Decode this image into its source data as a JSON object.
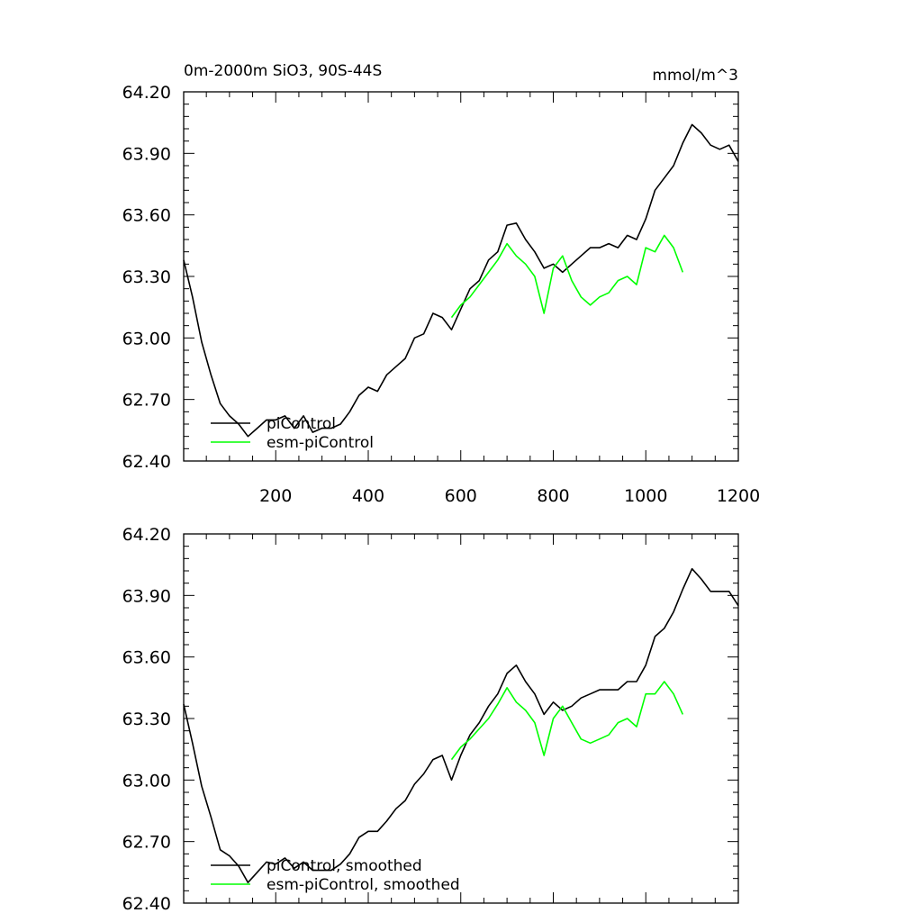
{
  "chart_data": {
    "type": "line",
    "units": "mmol/m^3",
    "colors": {
      "piControl": "#000000",
      "esm-piControl": "#00ff00",
      "axis": "#000000"
    },
    "xlim": [
      1,
      1200
    ],
    "ylim": [
      62.4,
      64.2
    ],
    "x_tick_labels": [
      "200",
      "400",
      "600",
      "800",
      "1000",
      "1200"
    ],
    "y_tick_labels": [
      "62.40",
      "62.70",
      "63.00",
      "63.30",
      "63.60",
      "63.90",
      "64.20"
    ],
    "panels": [
      {
        "title_left": "0m-2000m SiO3, 90S-44S",
        "title_right": "mmol/m^3",
        "smoothed": false,
        "legend": [
          "piControl",
          "esm-piControl"
        ],
        "series": [
          {
            "name": "piControl",
            "x": [
              1,
              20,
              40,
              60,
              80,
              100,
              120,
              140,
              160,
              180,
              200,
              220,
              240,
              260,
              280,
              300,
              320,
              340,
              360,
              380,
              400,
              420,
              440,
              460,
              480,
              500,
              520,
              540,
              560,
              580,
              600,
              620,
              640,
              660,
              680,
              700,
              720,
              740,
              760,
              780,
              800,
              820,
              840,
              860,
              880,
              900,
              920,
              940,
              960,
              980,
              1000,
              1020,
              1040,
              1060,
              1080,
              1100,
              1120,
              1140,
              1160,
              1180,
              1200
            ],
            "values": [
              63.38,
              63.2,
              62.98,
              62.82,
              62.68,
              62.62,
              62.58,
              62.52,
              62.56,
              62.6,
              62.6,
              62.62,
              62.56,
              62.62,
              62.54,
              62.56,
              62.56,
              62.58,
              62.64,
              62.72,
              62.76,
              62.74,
              62.82,
              62.86,
              62.9,
              63.0,
              63.02,
              63.12,
              63.1,
              63.04,
              63.14,
              63.24,
              63.28,
              63.38,
              63.42,
              63.55,
              63.56,
              63.48,
              63.42,
              63.34,
              63.36,
              63.32,
              63.36,
              63.4,
              63.44,
              63.44,
              63.46,
              63.44,
              63.5,
              63.48,
              63.58,
              63.72,
              63.78,
              63.84,
              63.95,
              64.04,
              64.0,
              63.94,
              63.92,
              63.94,
              63.86
            ]
          },
          {
            "name": "esm-piControl",
            "x": [
              580,
              600,
              620,
              640,
              660,
              680,
              700,
              720,
              740,
              760,
              780,
              800,
              820,
              840,
              860,
              880,
              900,
              920,
              940,
              960,
              980,
              1000,
              1020,
              1040,
              1060,
              1080
            ],
            "values": [
              63.1,
              63.16,
              63.2,
              63.26,
              63.32,
              63.38,
              63.46,
              63.4,
              63.36,
              63.3,
              63.12,
              63.34,
              63.4,
              63.28,
              63.2,
              63.16,
              63.2,
              63.22,
              63.28,
              63.3,
              63.26,
              63.44,
              63.42,
              63.5,
              63.44,
              63.32
            ]
          }
        ]
      },
      {
        "title_left": "",
        "title_right": "",
        "smoothed": true,
        "legend": [
          "piControl, smoothed",
          "esm-piControl, smoothed"
        ],
        "series": [
          {
            "name": "piControl, smoothed",
            "x": [
              1,
              20,
              40,
              60,
              80,
              100,
              120,
              140,
              160,
              180,
              200,
              220,
              240,
              260,
              280,
              300,
              320,
              340,
              360,
              380,
              400,
              420,
              440,
              460,
              480,
              500,
              520,
              540,
              560,
              580,
              600,
              620,
              640,
              660,
              680,
              700,
              720,
              740,
              760,
              780,
              800,
              820,
              840,
              860,
              880,
              900,
              920,
              940,
              960,
              980,
              1000,
              1020,
              1040,
              1060,
              1080,
              1100,
              1120,
              1140,
              1160,
              1180,
              1200
            ],
            "values": [
              63.37,
              63.18,
              62.97,
              62.82,
              62.66,
              62.63,
              62.58,
              62.5,
              62.55,
              62.6,
              62.59,
              62.62,
              62.57,
              62.6,
              62.56,
              62.56,
              62.56,
              62.59,
              62.64,
              62.72,
              62.75,
              62.75,
              62.8,
              62.86,
              62.9,
              62.98,
              63.03,
              63.1,
              63.12,
              63.0,
              63.12,
              63.22,
              63.28,
              63.36,
              63.42,
              63.52,
              63.56,
              63.48,
              63.42,
              63.32,
              63.38,
              63.34,
              63.36,
              63.4,
              63.42,
              63.44,
              63.44,
              63.44,
              63.48,
              63.48,
              63.56,
              63.7,
              63.74,
              63.82,
              63.93,
              64.03,
              63.98,
              63.92,
              63.92,
              63.92,
              63.85
            ]
          },
          {
            "name": "esm-piControl, smoothed",
            "x": [
              580,
              600,
              620,
              640,
              660,
              680,
              700,
              720,
              740,
              760,
              780,
              800,
              820,
              840,
              860,
              880,
              900,
              920,
              940,
              960,
              980,
              1000,
              1020,
              1040,
              1060,
              1080
            ],
            "values": [
              63.1,
              63.16,
              63.2,
              63.25,
              63.3,
              63.37,
              63.45,
              63.38,
              63.34,
              63.28,
              63.12,
              63.3,
              63.36,
              63.28,
              63.2,
              63.18,
              63.2,
              63.22,
              63.28,
              63.3,
              63.26,
              63.42,
              63.42,
              63.48,
              63.42,
              63.32
            ]
          }
        ]
      }
    ]
  }
}
